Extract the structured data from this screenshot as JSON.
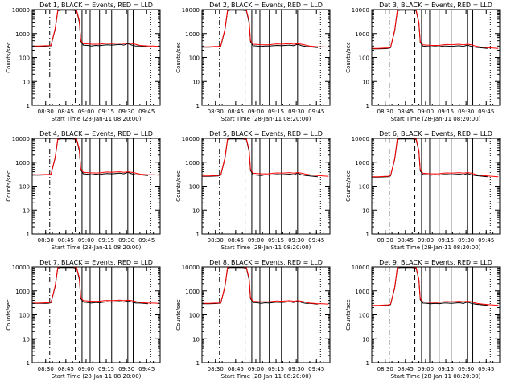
{
  "colors": {
    "background": "#ffffff",
    "events": "#000000",
    "lld": "#ff0000",
    "axes": "#000000"
  },
  "panel_titles": [
    "Det 1, BLACK = Events, RED = LLD",
    "Det 2, BLACK = Events, RED = LLD",
    "Det 3, BLACK = Events, RED = LLD",
    "Det 4, BLACK = Events, RED = LLD",
    "Det 5, BLACK = Events, RED = LLD",
    "Det 6, BLACK = Events, RED = LLD",
    "Det 7, BLACK = Events, RED = LLD",
    "Det 8, BLACK = Events, RED = LLD",
    "Det 9, BLACK = Events, RED = LLD"
  ],
  "ylabel": "Counts/sec",
  "xlabel": "Start Time (28-Jan-11 08:20:00)",
  "chart_data": {
    "type": "line",
    "layout": "3x3 grid of panels",
    "y_scale": "log",
    "ylim": [
      1,
      10000
    ],
    "y_ticks": [
      "1",
      "10",
      "100",
      "1000",
      "10000"
    ],
    "x_ticks": [
      "08:30",
      "08:45",
      "09:00",
      "09:15",
      "09:30",
      "09:45"
    ],
    "x_tick_minutes": [
      30,
      45,
      60,
      75,
      90,
      105
    ],
    "xlim_minutes": [
      20,
      115
    ],
    "x_tick_sets": [
      [
        "08:30",
        "08:45",
        "09:00",
        "09:15",
        "09:30",
        "09:45"
      ],
      [
        "08:30",
        "08:45",
        "09:00",
        "09:15",
        "09:30",
        "09:45"
      ],
      [
        "08:30",
        "08:45",
        "09:00",
        "09:15",
        "09:30",
        "09:45"
      ],
      [
        "08:30",
        "08:45",
        "09:00",
        "09:15",
        "09:30",
        "09:45"
      ],
      [
        "08:30",
        "08:45",
        "09:00",
        "09:15",
        "09:30",
        "09:45"
      ],
      [
        "08:30",
        "08:45",
        "09:00",
        "09:15",
        "09:30",
        "09:45"
      ],
      [
        "08:30",
        "08:45",
        "09:00",
        "09:15",
        "09:30",
        "09:45"
      ],
      [
        "08:30",
        "08:45",
        "09:00",
        "09:15",
        "09:30",
        "09:45"
      ],
      [
        "08:30",
        "08:45",
        "09:00",
        "09:15",
        "09:30",
        "09:45"
      ]
    ],
    "vertical_markers": [
      {
        "minute": 33,
        "style": "dash-dot"
      },
      {
        "minute": 52,
        "style": "dashed"
      },
      {
        "minute": 57,
        "style": "solid"
      },
      {
        "minute": 63,
        "style": "solid"
      },
      {
        "minute": 70,
        "style": "solid"
      },
      {
        "minute": 79,
        "style": "solid"
      },
      {
        "minute": 91,
        "style": "solid"
      },
      {
        "minute": 95,
        "style": "solid"
      },
      {
        "minute": 108,
        "style": "dotted"
      }
    ],
    "x_minutes": [
      20,
      25,
      30,
      32,
      34,
      37,
      39,
      41,
      45,
      48,
      50,
      53,
      55,
      56,
      58,
      61,
      64,
      67,
      70,
      73,
      76,
      79,
      82,
      85,
      88,
      91,
      94,
      97,
      100,
      103,
      106,
      110,
      114
    ],
    "panels": [
      {
        "series": [
          {
            "name": "Events",
            "values": [
              290,
              290,
              295,
              300,
              310,
              1500,
              9000,
              9500,
              9500,
              9500,
              9500,
              9000,
              3000,
              480,
              330,
              320,
              300,
              320,
              310,
              330,
              340,
              330,
              340,
              350,
              330,
              380,
              330,
              300,
              300,
              290,
              280,
              null,
              null
            ]
          },
          {
            "name": "LLD",
            "values": [
              300,
              300,
              310,
              310,
              320,
              1600,
              9500,
              10000,
              10000,
              10000,
              10000,
              9500,
              3500,
              520,
              380,
              370,
              360,
              360,
              360,
              380,
              390,
              380,
              390,
              400,
              380,
              400,
              380,
              350,
              320,
              310,
              300,
              300,
              290
            ]
          }
        ]
      },
      {
        "series": [
          {
            "name": "Events",
            "values": [
              270,
              270,
              275,
              280,
              300,
              1400,
              9000,
              9500,
              9500,
              9500,
              9500,
              9000,
              2800,
              460,
              310,
              300,
              290,
              300,
              300,
              310,
              320,
              310,
              320,
              330,
              310,
              360,
              310,
              290,
              280,
              270,
              260,
              null,
              null
            ]
          },
          {
            "name": "LLD",
            "values": [
              280,
              280,
              290,
              290,
              310,
              1500,
              9500,
              10000,
              10000,
              10000,
              10000,
              9500,
              3300,
              500,
              360,
              350,
              340,
              340,
              340,
              360,
              370,
              360,
              370,
              380,
              360,
              380,
              360,
              330,
              300,
              290,
              280,
              280,
              270
            ]
          }
        ]
      },
      {
        "series": [
          {
            "name": "Events",
            "values": [
              230,
              230,
              235,
              240,
              260,
              1300,
              9000,
              9500,
              9500,
              9500,
              9500,
              9000,
              2600,
              420,
              300,
              290,
              280,
              290,
              280,
              300,
              300,
              290,
              300,
              310,
              290,
              330,
              290,
              270,
              260,
              250,
              240,
              null,
              null
            ]
          },
          {
            "name": "LLD",
            "values": [
              240,
              240,
              250,
              250,
              270,
              1400,
              9500,
              10000,
              10000,
              10000,
              10000,
              9500,
              3000,
              460,
              340,
              330,
              320,
              320,
              320,
              340,
              350,
              340,
              350,
              360,
              340,
              360,
              340,
              300,
              280,
              270,
              260,
              250,
              240
            ]
          }
        ]
      },
      {
        "series": [
          {
            "name": "Events",
            "values": [
              290,
              290,
              295,
              300,
              310,
              1500,
              9000,
              9500,
              9500,
              9500,
              9500,
              9000,
              3000,
              470,
              330,
              320,
              300,
              320,
              310,
              330,
              340,
              330,
              340,
              350,
              330,
              380,
              330,
              300,
              300,
              290,
              280,
              null,
              null
            ]
          },
          {
            "name": "LLD",
            "values": [
              300,
              300,
              310,
              310,
              320,
              1600,
              9500,
              10000,
              10000,
              10000,
              10000,
              9500,
              3500,
              520,
              380,
              370,
              360,
              360,
              360,
              380,
              390,
              380,
              390,
              400,
              380,
              400,
              380,
              350,
              320,
              310,
              300,
              300,
              290
            ]
          }
        ]
      },
      {
        "series": [
          {
            "name": "Events",
            "values": [
              260,
              260,
              265,
              270,
              290,
              1400,
              9000,
              9500,
              9500,
              9500,
              9500,
              9000,
              2800,
              450,
              300,
              290,
              280,
              300,
              290,
              300,
              310,
              300,
              310,
              320,
              300,
              350,
              300,
              280,
              270,
              260,
              250,
              null,
              null
            ]
          },
          {
            "name": "LLD",
            "values": [
              270,
              270,
              280,
              280,
              300,
              1500,
              9500,
              10000,
              10000,
              10000,
              10000,
              9500,
              3300,
              490,
              350,
              340,
              330,
              330,
              330,
              350,
              360,
              350,
              360,
              370,
              350,
              370,
              350,
              320,
              300,
              290,
              280,
              270,
              260
            ]
          }
        ]
      },
      {
        "series": [
          {
            "name": "Events",
            "values": [
              240,
              240,
              245,
              250,
              270,
              1300,
              9000,
              9500,
              9500,
              9500,
              9500,
              9000,
              2700,
              430,
              310,
              300,
              290,
              300,
              290,
              310,
              310,
              300,
              310,
              320,
              300,
              340,
              300,
              280,
              270,
              260,
              250,
              null,
              null
            ]
          },
          {
            "name": "LLD",
            "values": [
              250,
              250,
              260,
              260,
              280,
              1400,
              9500,
              10000,
              10000,
              10000,
              10000,
              9500,
              3100,
              470,
              350,
              340,
              330,
              330,
              330,
              350,
              360,
              350,
              360,
              370,
              350,
              370,
              350,
              310,
              290,
              280,
              270,
              260,
              250
            ]
          }
        ]
      },
      {
        "series": [
          {
            "name": "Events",
            "values": [
              300,
              300,
              300,
              305,
              320,
              1500,
              9000,
              9500,
              9500,
              9500,
              9500,
              9000,
              3000,
              480,
              340,
              330,
              310,
              330,
              320,
              340,
              350,
              340,
              350,
              360,
              340,
              390,
              340,
              310,
              310,
              300,
              290,
              null,
              null
            ]
          },
          {
            "name": "LLD",
            "values": [
              310,
              310,
              320,
              320,
              330,
              1600,
              9500,
              10000,
              10000,
              10000,
              10000,
              9500,
              3500,
              530,
              390,
              380,
              370,
              370,
              370,
              390,
              400,
              390,
              400,
              410,
              390,
              410,
              390,
              360,
              330,
              320,
              310,
              310,
              300
            ]
          }
        ]
      },
      {
        "series": [
          {
            "name": "Events",
            "values": [
              290,
              290,
              295,
              300,
              310,
              1450,
              9000,
              9500,
              9500,
              9500,
              9500,
              9000,
              2900,
              470,
              330,
              320,
              300,
              320,
              310,
              330,
              340,
              330,
              340,
              350,
              330,
              370,
              330,
              300,
              300,
              290,
              280,
              null,
              null
            ]
          },
          {
            "name": "LLD",
            "values": [
              300,
              300,
              310,
              310,
              320,
              1550,
              9500,
              10000,
              10000,
              10000,
              10000,
              9500,
              3400,
              510,
              370,
              360,
              350,
              350,
              350,
              370,
              380,
              370,
              380,
              390,
              370,
              390,
              370,
              340,
              310,
              300,
              290,
              290,
              280
            ]
          }
        ]
      },
      {
        "series": [
          {
            "name": "Events",
            "values": [
              240,
              240,
              245,
              250,
              270,
              1300,
              9000,
              9500,
              9500,
              9500,
              9500,
              9000,
              2700,
              430,
              310,
              300,
              290,
              300,
              290,
              310,
              310,
              300,
              310,
              320,
              300,
              340,
              300,
              280,
              270,
              260,
              250,
              null,
              null
            ]
          },
          {
            "name": "LLD",
            "values": [
              250,
              250,
              260,
              260,
              280,
              1400,
              9500,
              10000,
              10000,
              10000,
              10000,
              9500,
              3100,
              470,
              350,
              340,
              330,
              330,
              330,
              350,
              360,
              350,
              360,
              370,
              350,
              370,
              350,
              310,
              290,
              280,
              270,
              260,
              250
            ]
          }
        ]
      }
    ]
  }
}
